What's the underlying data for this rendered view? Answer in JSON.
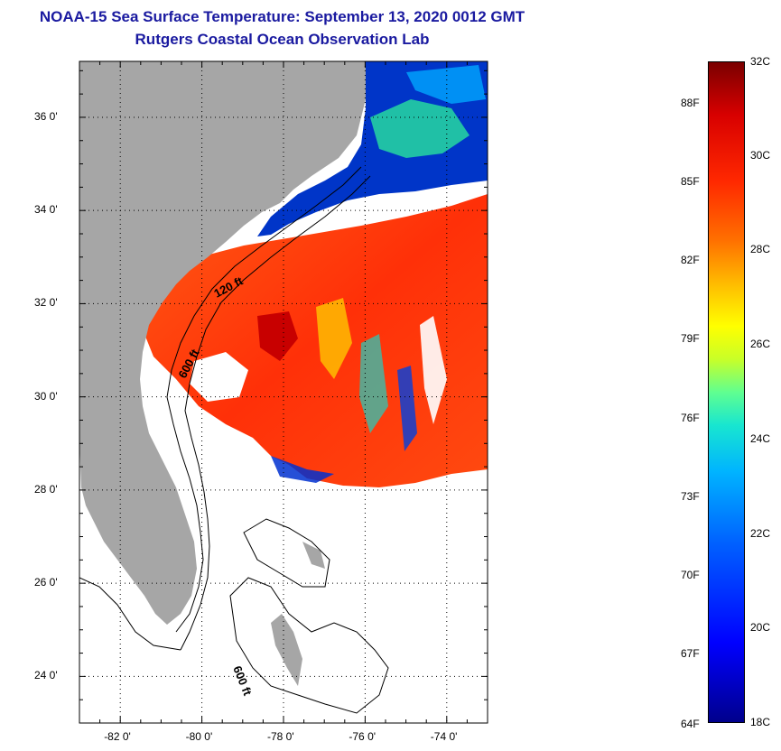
{
  "title": {
    "line1": "NOAA-15 Sea Surface Temperature:  September 13, 2020 0012 GMT",
    "line2": "Rutgers Coastal Ocean Observation Lab"
  },
  "map": {
    "lat_ticks": [
      {
        "value": 36,
        "label": "36 0'"
      },
      {
        "value": 34,
        "label": "34 0'"
      },
      {
        "value": 32,
        "label": "32 0'"
      },
      {
        "value": 30,
        "label": "30 0'"
      },
      {
        "value": 28,
        "label": "28 0'"
      },
      {
        "value": 26,
        "label": "26 0'"
      },
      {
        "value": 24,
        "label": "24 0'"
      }
    ],
    "lon_ticks": [
      {
        "value": -82,
        "label": "-82 0'"
      },
      {
        "value": -80,
        "label": "-80 0'"
      },
      {
        "value": -78,
        "label": "-78 0'"
      },
      {
        "value": -76,
        "label": "-76 0'"
      },
      {
        "value": -74,
        "label": "-74 0'"
      }
    ],
    "lon_range": [
      -83,
      -73
    ],
    "lat_range": [
      23,
      37.2
    ],
    "grid": "dotted",
    "contour_labels": [
      "120 ft",
      "600 ft",
      "600 ft"
    ],
    "colors": {
      "land": "#a6a6a6",
      "warm_sst": "#ff3a10",
      "cool_sst": "#0030d0",
      "no_data": "#ffffff"
    }
  },
  "colorbar": {
    "celsius_labels": [
      "32C",
      "30C",
      "28C",
      "26C",
      "24C",
      "22C",
      "20C",
      "18C"
    ],
    "fahrenheit_labels": [
      "88F",
      "85F",
      "82F",
      "79F",
      "76F",
      "73F",
      "70F",
      "67F",
      "64F"
    ],
    "range_c": [
      18,
      32
    ]
  }
}
